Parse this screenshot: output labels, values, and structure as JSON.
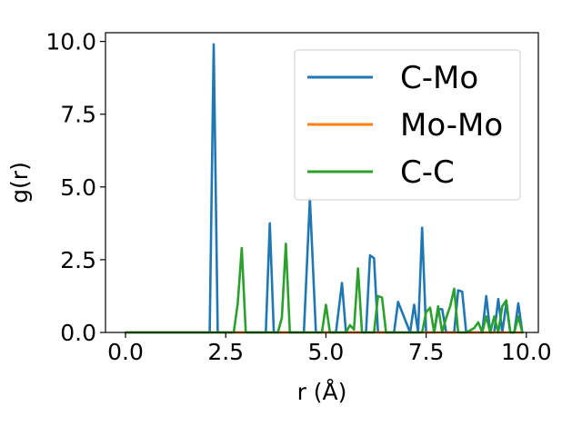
{
  "chart_data": {
    "type": "line",
    "title": "",
    "xlabel": "r (Å)",
    "ylabel": "g(r)",
    "xlim": [
      -0.5,
      10.3
    ],
    "ylim": [
      0,
      10.3
    ],
    "xticks": [
      0.0,
      2.5,
      5.0,
      7.5,
      10.0
    ],
    "xtick_labels": [
      "0.0",
      "2.5",
      "5.0",
      "7.5",
      "10.0"
    ],
    "yticks": [
      0.0,
      2.5,
      5.0,
      7.5,
      10.0
    ],
    "ytick_labels": [
      "0.0",
      "2.5",
      "5.0",
      "7.5",
      "10.0"
    ],
    "grid": false,
    "legend_position": "upper-right",
    "series": [
      {
        "name": "C-Mo",
        "color": "#1f77b4",
        "x": [
          0,
          2.1,
          2.2,
          2.3,
          3.5,
          3.6,
          3.7,
          4.0,
          4.45,
          4.6,
          4.75,
          5.25,
          5.4,
          5.5,
          5.9,
          6.0,
          6.1,
          6.2,
          6.3,
          6.6,
          6.7,
          6.8,
          7.1,
          7.2,
          7.3,
          7.4,
          7.5,
          7.7,
          7.8,
          7.9,
          8.0,
          8.2,
          8.3,
          8.4,
          8.5,
          8.8,
          8.9,
          9.0,
          9.1,
          9.2,
          9.3,
          9.4,
          9.5,
          9.6,
          9.7,
          9.8,
          9.9
        ],
        "y": [
          0,
          0,
          9.9,
          0,
          0,
          3.75,
          0,
          0,
          0,
          4.6,
          0,
          0,
          1.7,
          0,
          0,
          0,
          2.65,
          2.55,
          0,
          0,
          0,
          1.05,
          0,
          0.95,
          0,
          3.6,
          0,
          0,
          0.8,
          0.8,
          0,
          0,
          1.45,
          1.4,
          0,
          0,
          0,
          1.25,
          0,
          0,
          1.15,
          0,
          1.0,
          0,
          0,
          1.0,
          0
        ]
      },
      {
        "name": "Mo-Mo",
        "color": "#ff7f0e",
        "x": [
          0,
          9.9
        ],
        "y": [
          0,
          0
        ]
      },
      {
        "name": "C-C",
        "color": "#2ca02c",
        "x": [
          0,
          2.7,
          2.8,
          2.9,
          3.0,
          3.8,
          3.9,
          4.0,
          4.1,
          4.8,
          4.9,
          5.0,
          5.1,
          5.5,
          5.6,
          5.7,
          5.8,
          5.9,
          6.0,
          6.2,
          6.3,
          6.4,
          6.5,
          7.4,
          7.5,
          7.6,
          7.7,
          7.8,
          7.9,
          8.0,
          8.1,
          8.2,
          8.3,
          8.5,
          8.7,
          8.8,
          8.9,
          9.0,
          9.1,
          9.2,
          9.3,
          9.4,
          9.5,
          9.6,
          9.7,
          9.8,
          9.9
        ],
        "y": [
          0,
          0,
          1.0,
          2.9,
          0,
          0,
          0.5,
          3.05,
          0,
          0,
          0,
          0.95,
          0,
          0,
          0.25,
          0.1,
          2.2,
          0,
          0,
          0,
          1.25,
          1.2,
          0,
          0,
          0.7,
          0.85,
          0,
          0.9,
          0,
          0.5,
          0.9,
          1.5,
          0,
          0,
          0.15,
          0.35,
          0,
          0.55,
          0,
          0.55,
          0,
          0.9,
          1.1,
          0,
          0,
          0.55,
          0
        ]
      }
    ]
  }
}
